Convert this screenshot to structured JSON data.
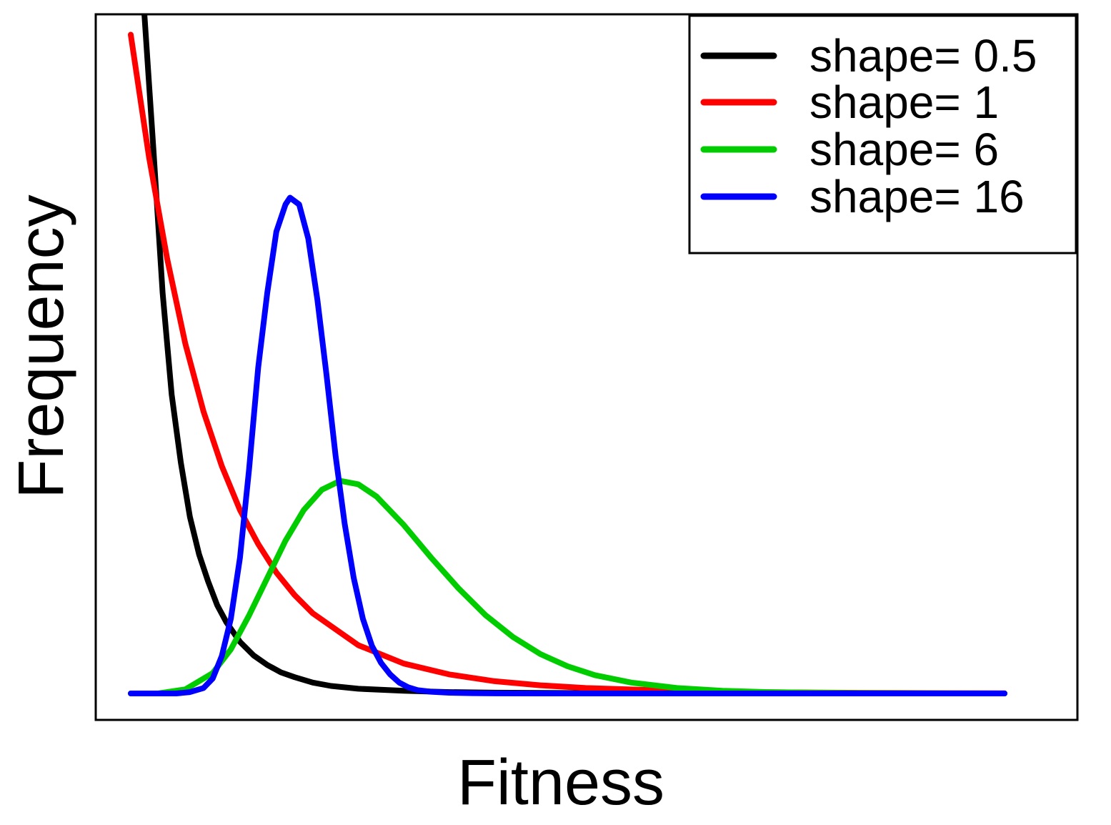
{
  "chart_data": {
    "type": "line",
    "xlabel": "Fitness",
    "ylabel": "Frequency",
    "xlim": [
      0,
      1
    ],
    "ylim": [
      0,
      1
    ],
    "x_ticks": "none",
    "y_ticks": "none",
    "grid": false,
    "legend_position": "top-right",
    "series": [
      {
        "name": "shape= 0.5",
        "color": "#000000",
        "x": [
          0.015,
          0.025,
          0.035,
          0.045,
          0.055,
          0.065,
          0.075,
          0.085,
          0.095,
          0.105,
          0.12,
          0.135,
          0.15,
          0.165,
          0.18,
          0.2,
          0.22,
          0.25,
          0.3,
          0.35,
          0.4,
          0.5,
          0.6,
          0.8,
          0.96
        ],
        "y": [
          1.0,
          0.8,
          0.59,
          0.44,
          0.34,
          0.26,
          0.205,
          0.165,
          0.13,
          0.105,
          0.076,
          0.056,
          0.042,
          0.031,
          0.024,
          0.016,
          0.011,
          0.007,
          0.004,
          0.002,
          0.0012,
          0.0005,
          0.0002,
          0.0,
          0.0
        ]
      },
      {
        "name": "shape= 1",
        "color": "#ff0000",
        "x": [
          0.0,
          0.02,
          0.04,
          0.06,
          0.08,
          0.1,
          0.12,
          0.14,
          0.16,
          0.18,
          0.2,
          0.25,
          0.3,
          0.35,
          0.4,
          0.45,
          0.5,
          0.6,
          0.7,
          0.8,
          0.9,
          0.96
        ],
        "y": [
          0.97,
          0.79,
          0.64,
          0.515,
          0.415,
          0.335,
          0.27,
          0.22,
          0.178,
          0.145,
          0.118,
          0.071,
          0.044,
          0.028,
          0.018,
          0.012,
          0.008,
          0.0038,
          0.0018,
          0.0009,
          0.0004,
          0.0002
        ]
      },
      {
        "name": "shape= 6",
        "color": "#00cc00",
        "x": [
          0.0,
          0.03,
          0.06,
          0.09,
          0.11,
          0.13,
          0.15,
          0.17,
          0.19,
          0.21,
          0.23,
          0.25,
          0.27,
          0.3,
          0.33,
          0.36,
          0.39,
          0.42,
          0.45,
          0.48,
          0.51,
          0.55,
          0.6,
          0.65,
          0.7,
          0.75,
          0.8,
          0.85,
          0.9,
          0.96
        ],
        "y": [
          0.0,
          0.0,
          0.006,
          0.03,
          0.065,
          0.115,
          0.17,
          0.225,
          0.27,
          0.3,
          0.313,
          0.308,
          0.29,
          0.248,
          0.2,
          0.155,
          0.115,
          0.083,
          0.058,
          0.04,
          0.027,
          0.016,
          0.008,
          0.004,
          0.002,
          0.001,
          0.0005,
          0.0002,
          0.0001,
          0.0
        ]
      },
      {
        "name": "shape= 16",
        "color": "#0000ff",
        "x": [
          0.0,
          0.02,
          0.05,
          0.065,
          0.08,
          0.09,
          0.1,
          0.11,
          0.12,
          0.13,
          0.14,
          0.15,
          0.16,
          0.17,
          0.175,
          0.185,
          0.195,
          0.205,
          0.215,
          0.225,
          0.235,
          0.245,
          0.255,
          0.265,
          0.275,
          0.285,
          0.295,
          0.305,
          0.315,
          0.33,
          0.35,
          0.375,
          0.4,
          0.45,
          0.5,
          0.6,
          0.8,
          0.96
        ],
        "y": [
          0.0,
          0.0,
          0.0,
          0.002,
          0.008,
          0.022,
          0.055,
          0.11,
          0.2,
          0.33,
          0.48,
          0.59,
          0.68,
          0.72,
          0.73,
          0.72,
          0.67,
          0.58,
          0.47,
          0.35,
          0.25,
          0.17,
          0.11,
          0.07,
          0.045,
          0.028,
          0.016,
          0.009,
          0.005,
          0.0025,
          0.001,
          0.0004,
          0.0001,
          0.0,
          0.0,
          0.0,
          0.0,
          0.0
        ]
      }
    ]
  }
}
